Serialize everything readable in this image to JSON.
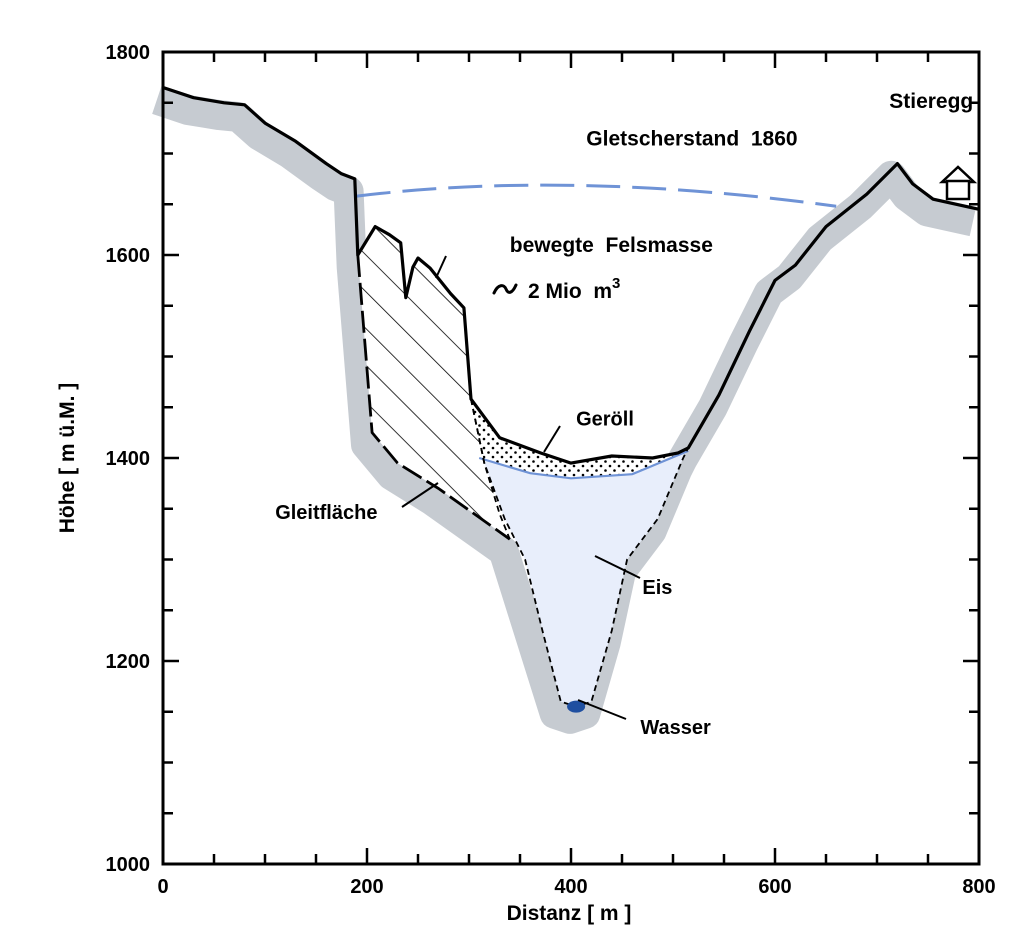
{
  "chart_data": {
    "type": "cross-section",
    "xlabel": "Distanz [ m ]",
    "ylabel": "Höhe [ m ü.M. ]",
    "xlim": [
      0,
      800
    ],
    "ylim": [
      1000,
      1800
    ],
    "x_ticks": [
      0,
      200,
      400,
      600,
      800
    ],
    "y_ticks": [
      1000,
      1200,
      1400,
      1600,
      1800
    ],
    "grid": false,
    "terrain_profile": [
      [
        0,
        1765
      ],
      [
        30,
        1755
      ],
      [
        60,
        1750
      ],
      [
        80,
        1748
      ],
      [
        100,
        1730
      ],
      [
        130,
        1712
      ],
      [
        160,
        1690
      ],
      [
        175,
        1680
      ],
      [
        188,
        1675
      ],
      [
        191,
        1600
      ],
      [
        208,
        1628
      ],
      [
        222,
        1620
      ],
      [
        233,
        1612
      ],
      [
        238,
        1558
      ],
      [
        245,
        1588
      ],
      [
        250,
        1597
      ],
      [
        262,
        1587
      ],
      [
        282,
        1562
      ],
      [
        295,
        1548
      ],
      [
        302,
        1458
      ],
      [
        330,
        1420
      ],
      [
        370,
        1405
      ],
      [
        400,
        1395
      ],
      [
        440,
        1402
      ],
      [
        480,
        1400
      ],
      [
        505,
        1405
      ],
      [
        515,
        1410
      ],
      [
        545,
        1462
      ],
      [
        575,
        1525
      ],
      [
        600,
        1575
      ],
      [
        620,
        1590
      ],
      [
        650,
        1628
      ],
      [
        690,
        1660
      ],
      [
        720,
        1690
      ],
      [
        735,
        1670
      ],
      [
        755,
        1655
      ],
      [
        800,
        1645
      ]
    ],
    "slide_surface": [
      [
        191,
        1600
      ],
      [
        205,
        1425
      ],
      [
        230,
        1395
      ],
      [
        270,
        1370
      ],
      [
        340,
        1320
      ]
    ],
    "ice_profile": [
      [
        302,
        1458
      ],
      [
        315,
        1395
      ],
      [
        335,
        1340
      ],
      [
        355,
        1300
      ],
      [
        372,
        1230
      ],
      [
        390,
        1160
      ],
      [
        405,
        1155
      ],
      [
        420,
        1160
      ],
      [
        440,
        1230
      ],
      [
        455,
        1300
      ],
      [
        485,
        1340
      ],
      [
        510,
        1400
      ],
      [
        515,
        1410
      ]
    ],
    "ice_surface_1860": [
      [
        190,
        1658
      ],
      [
        400,
        1672
      ],
      [
        660,
        1648
      ]
    ],
    "debris_base": [
      [
        310,
        1400
      ],
      [
        360,
        1385
      ],
      [
        400,
        1380
      ],
      [
        460,
        1384
      ],
      [
        515,
        1407
      ]
    ],
    "annotations": [
      {
        "text": "Gletscherstand  1860",
        "x": 415,
        "y": 1708
      },
      {
        "text": "bewegte  Felsmasse",
        "x": 340,
        "y": 1603
      },
      {
        "text": "Geröll",
        "x": 405,
        "y": 1432
      },
      {
        "text": "Gleitfläche",
        "x": 110,
        "y": 1340
      },
      {
        "text": "Eis",
        "x": 470,
        "y": 1266
      },
      {
        "text": "Wasser",
        "x": 468,
        "y": 1128
      },
      {
        "text": "Stieregg",
        "x": 712,
        "y": 1745
      }
    ],
    "volume_label": "2 Mio  m",
    "volume_superscript": "3",
    "colors": {
      "bedrock": "#c6cbd1",
      "ice": "#e8eefb",
      "line_1860": "#6f93d6",
      "ice_surface": "#6f93d6",
      "water": "#1f4fa0"
    }
  }
}
